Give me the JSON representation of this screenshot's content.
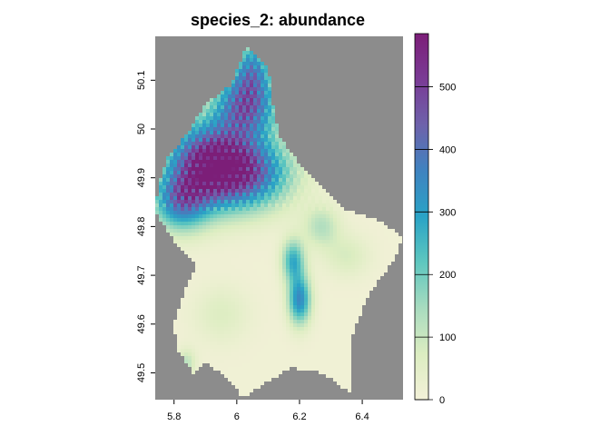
{
  "chart_data": {
    "type": "heatmap",
    "title": "species_2: abundance",
    "xlabel": "",
    "ylabel": "",
    "xlim": [
      5.74,
      6.53
    ],
    "ylim": [
      49.445,
      50.19
    ],
    "x_ticks": [
      5.8,
      6.0,
      6.2,
      6.4
    ],
    "x_tick_labels": [
      "5.8",
      "6",
      "6.2",
      "6.4"
    ],
    "y_ticks": [
      49.5,
      49.6,
      49.7,
      49.8,
      49.9,
      50.0,
      50.1
    ],
    "y_tick_labels": [
      "49.5",
      "49.6",
      "49.7",
      "49.8",
      "49.9",
      "50",
      "50.1"
    ],
    "background_na_color": "#8c8c8c",
    "colorbar": {
      "min": 0,
      "max": 585,
      "ticks": [
        0,
        100,
        200,
        300,
        400,
        500
      ],
      "tick_labels": [
        "0",
        "100",
        "200",
        "300",
        "400",
        "500"
      ],
      "colors": [
        "#f3f1d8",
        "#dcedc1",
        "#a8dbbf",
        "#5ec7bf",
        "#2aa3c6",
        "#3f83c0",
        "#6e62ab",
        "#7a3b95",
        "#7c1e78"
      ]
    },
    "region_outline": [
      [
        5.81,
        49.55
      ],
      [
        5.8,
        49.6
      ],
      [
        5.84,
        49.68
      ],
      [
        5.87,
        49.72
      ],
      [
        5.81,
        49.76
      ],
      [
        5.74,
        49.83
      ],
      [
        5.75,
        49.89
      ],
      [
        5.78,
        49.94
      ],
      [
        5.85,
        50.0
      ],
      [
        5.9,
        50.05
      ],
      [
        5.98,
        50.09
      ],
      [
        6.03,
        50.17
      ],
      [
        6.1,
        50.13
      ],
      [
        6.12,
        50.03
      ],
      [
        6.14,
        49.98
      ],
      [
        6.2,
        49.93
      ],
      [
        6.33,
        49.84
      ],
      [
        6.46,
        49.81
      ],
      [
        6.53,
        49.78
      ],
      [
        6.5,
        49.73
      ],
      [
        6.42,
        49.66
      ],
      [
        6.37,
        49.58
      ],
      [
        6.36,
        49.46
      ],
      [
        6.27,
        49.5
      ],
      [
        6.17,
        49.51
      ],
      [
        6.02,
        49.45
      ],
      [
        5.95,
        49.5
      ],
      [
        5.9,
        49.52
      ],
      [
        5.86,
        49.5
      ]
    ],
    "hotspots": [
      {
        "x": 5.9,
        "y": 49.93,
        "value": 480,
        "sx": 0.09,
        "sy": 0.06
      },
      {
        "x": 6.03,
        "y": 49.91,
        "value": 420,
        "sx": 0.1,
        "sy": 0.05
      },
      {
        "x": 6.03,
        "y": 50.05,
        "value": 430,
        "sx": 0.07,
        "sy": 0.05
      },
      {
        "x": 6.05,
        "y": 50.13,
        "value": 250,
        "sx": 0.04,
        "sy": 0.04
      },
      {
        "x": 5.82,
        "y": 49.85,
        "value": 320,
        "sx": 0.06,
        "sy": 0.04
      },
      {
        "x": 6.2,
        "y": 49.65,
        "value": 340,
        "sx": 0.025,
        "sy": 0.035
      },
      {
        "x": 6.18,
        "y": 49.73,
        "value": 260,
        "sx": 0.025,
        "sy": 0.03
      },
      {
        "x": 6.27,
        "y": 49.8,
        "value": 120,
        "sx": 0.04,
        "sy": 0.03
      },
      {
        "x": 5.84,
        "y": 49.52,
        "value": 110,
        "sx": 0.02,
        "sy": 0.02
      },
      {
        "x": 5.95,
        "y": 49.62,
        "value": 60,
        "sx": 0.06,
        "sy": 0.04
      },
      {
        "x": 6.35,
        "y": 49.74,
        "value": 70,
        "sx": 0.05,
        "sy": 0.03
      }
    ]
  }
}
